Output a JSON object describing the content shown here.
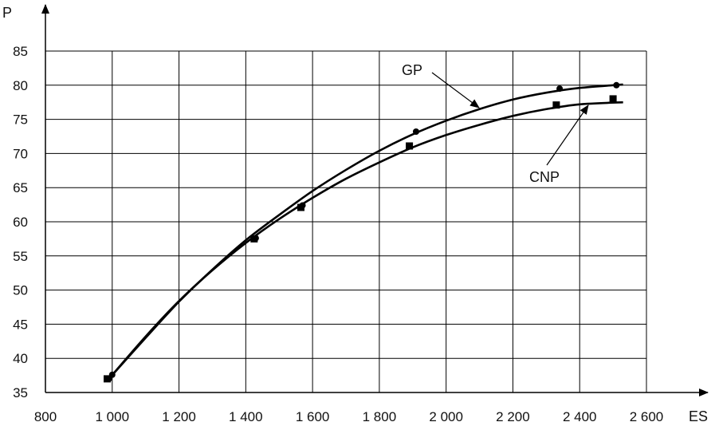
{
  "chart_data": {
    "type": "line",
    "title": "",
    "xlabel": "ES",
    "ylabel": "P",
    "xlim": [
      800,
      2600
    ],
    "ylim": [
      35,
      85
    ],
    "x_ticks": [
      800,
      1000,
      1200,
      1400,
      1600,
      1800,
      2000,
      2200,
      2400,
      2600
    ],
    "x_tick_labels": [
      "800",
      "1 000",
      "1 200",
      "1 400",
      "1 600",
      "1 800",
      "2 000",
      "2 200",
      "2 400",
      "2 600"
    ],
    "y_ticks": [
      35,
      40,
      45,
      50,
      55,
      60,
      65,
      70,
      75,
      80,
      85
    ],
    "y_tick_labels": [
      "35",
      "40",
      "45",
      "50",
      "55",
      "60",
      "65",
      "70",
      "75",
      "80",
      "85"
    ],
    "grid": true,
    "legend": "none",
    "series": [
      {
        "name": "GP",
        "marker": "circle",
        "points": [
          [
            990,
            37.0
          ],
          [
            1000,
            37.6
          ],
          [
            1430,
            57.6
          ],
          [
            1570,
            62.4
          ],
          [
            1910,
            73.2
          ],
          [
            2340,
            79.5
          ],
          [
            2510,
            80.0
          ]
        ],
        "curve": [
          [
            990,
            37.0
          ],
          [
            1100,
            43.0
          ],
          [
            1200,
            48.3
          ],
          [
            1300,
            53.0
          ],
          [
            1400,
            57.3
          ],
          [
            1500,
            61.0
          ],
          [
            1600,
            64.5
          ],
          [
            1700,
            67.6
          ],
          [
            1800,
            70.4
          ],
          [
            1900,
            72.8
          ],
          [
            2000,
            74.8
          ],
          [
            2100,
            76.5
          ],
          [
            2200,
            77.9
          ],
          [
            2300,
            78.9
          ],
          [
            2400,
            79.6
          ],
          [
            2530,
            80.1
          ]
        ]
      },
      {
        "name": "CNP",
        "marker": "square",
        "points": [
          [
            985,
            37.0
          ],
          [
            1425,
            57.5
          ],
          [
            1565,
            62.1
          ],
          [
            1890,
            71.1
          ],
          [
            2330,
            77.1
          ],
          [
            2500,
            78.0
          ]
        ],
        "curve": [
          [
            990,
            37.0
          ],
          [
            1100,
            43.2
          ],
          [
            1200,
            48.4
          ],
          [
            1300,
            52.9
          ],
          [
            1400,
            56.9
          ],
          [
            1500,
            60.4
          ],
          [
            1600,
            63.5
          ],
          [
            1700,
            66.3
          ],
          [
            1800,
            68.7
          ],
          [
            1900,
            70.9
          ],
          [
            2000,
            72.7
          ],
          [
            2100,
            74.2
          ],
          [
            2200,
            75.5
          ],
          [
            2300,
            76.5
          ],
          [
            2400,
            77.2
          ],
          [
            2530,
            77.5
          ]
        ]
      }
    ],
    "annotations": [
      "GP",
      "CNP"
    ]
  }
}
